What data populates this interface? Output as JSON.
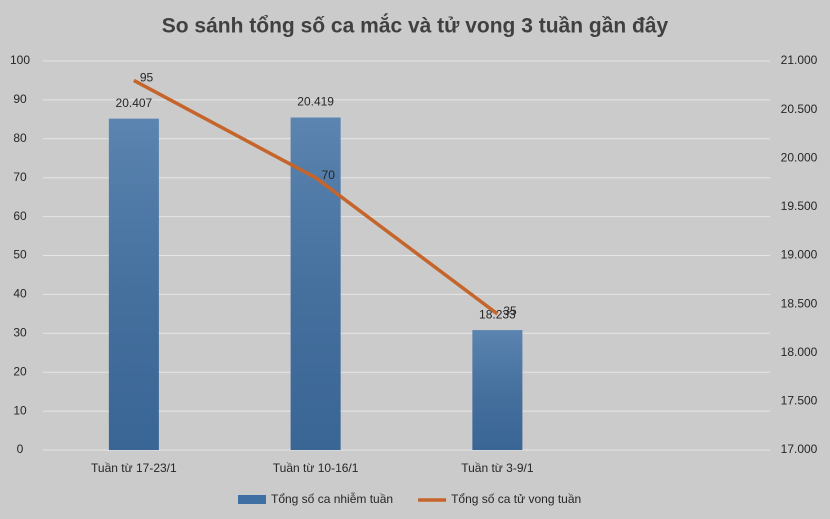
{
  "chart_data": {
    "type": "combo",
    "title": "So sánh tổng số ca mắc và tử vong 3 tuần gần đây",
    "categories": [
      "Tuần từ 17-23/1",
      "Tuần từ 10-16/1",
      "Tuần từ 3-9/1",
      null
    ],
    "series": [
      {
        "name": "Tổng số ca nhiễm tuần",
        "type": "bar",
        "axis": "y2",
        "color": "#3f6fa3",
        "values": [
          20407,
          20419,
          18233,
          null
        ],
        "value_labels": [
          "20.407",
          "20.419",
          "18.233",
          null
        ]
      },
      {
        "name": "Tổng số ca tử vong tuần",
        "type": "line",
        "axis": "y",
        "color": "#c5652b",
        "values": [
          95,
          70,
          35,
          null
        ]
      }
    ],
    "ylim": [
      0,
      100
    ],
    "yticks": [
      0,
      10,
      20,
      30,
      40,
      50,
      60,
      70,
      80,
      90,
      100
    ],
    "y2lim": [
      17000,
      21000
    ],
    "y2ticks": [
      {
        "value": 17000,
        "label": "17.000"
      },
      {
        "value": 17500,
        "label": "17.500"
      },
      {
        "value": 18000,
        "label": "18.000"
      },
      {
        "value": 18500,
        "label": "18.500"
      },
      {
        "value": 19000,
        "label": "19.000"
      },
      {
        "value": 19500,
        "label": "19.500"
      },
      {
        "value": 20000,
        "label": "20.000"
      },
      {
        "value": 20500,
        "label": "20.500"
      },
      {
        "value": 21000,
        "label": "21.000"
      }
    ],
    "grid": true,
    "legend": "bottom"
  }
}
